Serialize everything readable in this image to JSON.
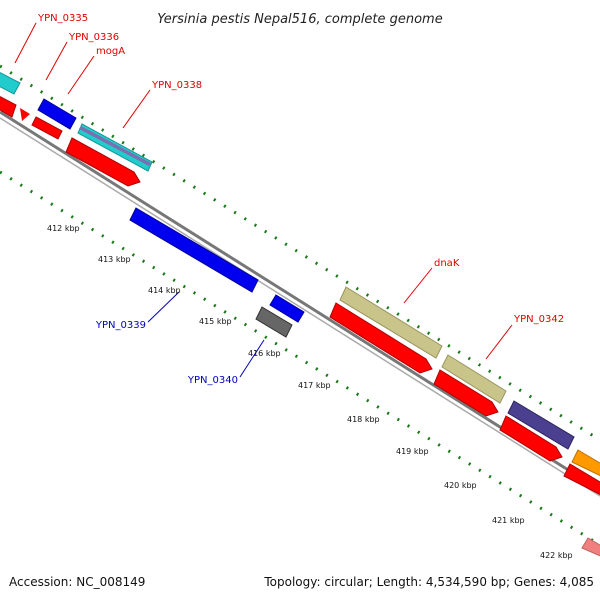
{
  "title": "Yersinia pestis Nepal516, complete genome",
  "footer": {
    "accession": "Accession: NC_008149",
    "summary": "Topology: circular; Length: 4,534,590 bp; Genes: 4,085"
  },
  "gene_labels": {
    "ypn_0335": "YPN_0335",
    "ypn_0336": "YPN_0336",
    "moga": "mogA",
    "ypn_0338": "YPN_0338",
    "dnak": "dnaK",
    "ypn_0342": "YPN_0342",
    "ypn_0339": "YPN_0339",
    "ypn_0340": "YPN_0340"
  },
  "ticks": {
    "t412": "412 kbp",
    "t413": "413 kbp",
    "t414": "414 kbp",
    "t415": "415 kbp",
    "t416": "416 kbp",
    "t417": "417 kbp",
    "t418": "418 kbp",
    "t419": "419 kbp",
    "t420": "420 kbp",
    "t421": "421 kbp",
    "t422": "422 kbp"
  },
  "colors": {
    "forward_label": "#e00000",
    "reverse_label": "#0000c0",
    "cds_red": "#ff0000",
    "blue": "#0000ee",
    "cyan": "#22cccc",
    "khaki": "#c8c48a",
    "indigo": "#4b3f8f",
    "orange": "#ff9900",
    "pink": "#f08080",
    "gray": "#666666",
    "backbone": "#888888",
    "tick_green": "#1a7a1a"
  }
}
